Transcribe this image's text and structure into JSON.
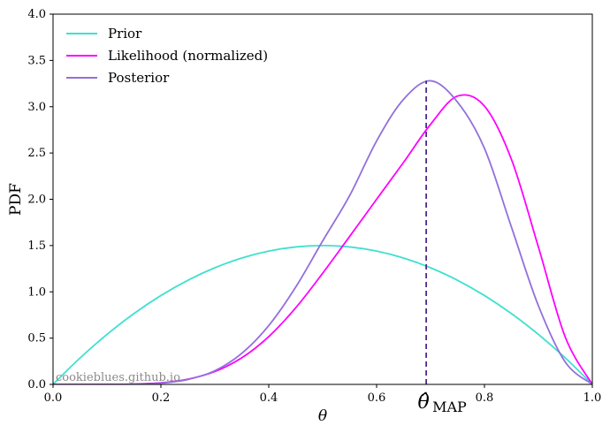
{
  "chart_data": {
    "type": "line",
    "xlabel": "θ",
    "ylabel": "PDF",
    "xlim": [
      0,
      1
    ],
    "ylim": [
      0,
      4
    ],
    "xticks": [
      0.0,
      0.2,
      0.4,
      0.6,
      0.8,
      1.0
    ],
    "xtick_labels": [
      "0.0",
      "0.2",
      "0.4",
      "0.6",
      "0.8",
      "1.0"
    ],
    "yticks": [
      0.0,
      0.5,
      1.0,
      1.5,
      2.0,
      2.5,
      3.0,
      3.5,
      4.0
    ],
    "ytick_labels": [
      "0.0",
      "0.5",
      "1.0",
      "1.5",
      "2.0",
      "2.5",
      "3.0",
      "3.5",
      "4.0"
    ],
    "grid": false,
    "legend_position": "top-left",
    "series": [
      {
        "name": "Prior",
        "color": "#40e0d0",
        "x": [
          0,
          0.05,
          0.1,
          0.15,
          0.2,
          0.25,
          0.3,
          0.35,
          0.4,
          0.45,
          0.5,
          0.55,
          0.6,
          0.65,
          0.7,
          0.75,
          0.8,
          0.85,
          0.9,
          0.95,
          1.0
        ],
        "y": [
          0,
          0.285,
          0.54,
          0.765,
          0.96,
          1.125,
          1.26,
          1.365,
          1.44,
          1.485,
          1.5,
          1.485,
          1.44,
          1.365,
          1.26,
          1.125,
          0.96,
          0.765,
          0.54,
          0.285,
          0
        ]
      },
      {
        "name": "Likelihood (normalized)",
        "color": "#ff00ff",
        "x": [
          0,
          0.05,
          0.1,
          0.15,
          0.2,
          0.25,
          0.3,
          0.35,
          0.4,
          0.45,
          0.5,
          0.55,
          0.6,
          0.65,
          0.7,
          0.75,
          0.8,
          0.85,
          0.9,
          0.95,
          1.0
        ],
        "y": [
          0,
          0.0,
          0.0004,
          0.0038,
          0.0177,
          0.0563,
          0.1389,
          0.2871,
          0.5164,
          0.8273,
          1.2012,
          1.5982,
          2.0,
          2.3987,
          2.8091,
          3.1151,
          3.0064,
          2.4313,
          1.4841,
          0.5085,
          0
        ]
      },
      {
        "name": "Posterior",
        "color": "#9370db",
        "x": [
          0,
          0.05,
          0.1,
          0.15,
          0.2,
          0.25,
          0.3,
          0.35,
          0.4,
          0.45,
          0.5,
          0.55,
          0.6,
          0.65,
          0.7,
          0.75,
          0.8,
          0.85,
          0.9,
          0.95,
          1.0
        ],
        "y": [
          0,
          0.0,
          0.0,
          0.0027,
          0.0143,
          0.0531,
          0.148,
          0.336,
          0.635,
          1.051,
          1.55,
          2.04,
          2.63,
          3.08,
          3.28,
          3.05,
          2.55,
          1.7,
          0.85,
          0.24,
          0
        ]
      }
    ],
    "annotations": [
      {
        "type": "vline",
        "x": 0.692,
        "y_top": 3.28,
        "style": "dashed",
        "color": "#4b2a8a"
      },
      {
        "type": "label",
        "text": "θ̂",
        "subscript": "MAP",
        "x": 0.692
      }
    ],
    "watermark": "cookieblues.github.io"
  }
}
